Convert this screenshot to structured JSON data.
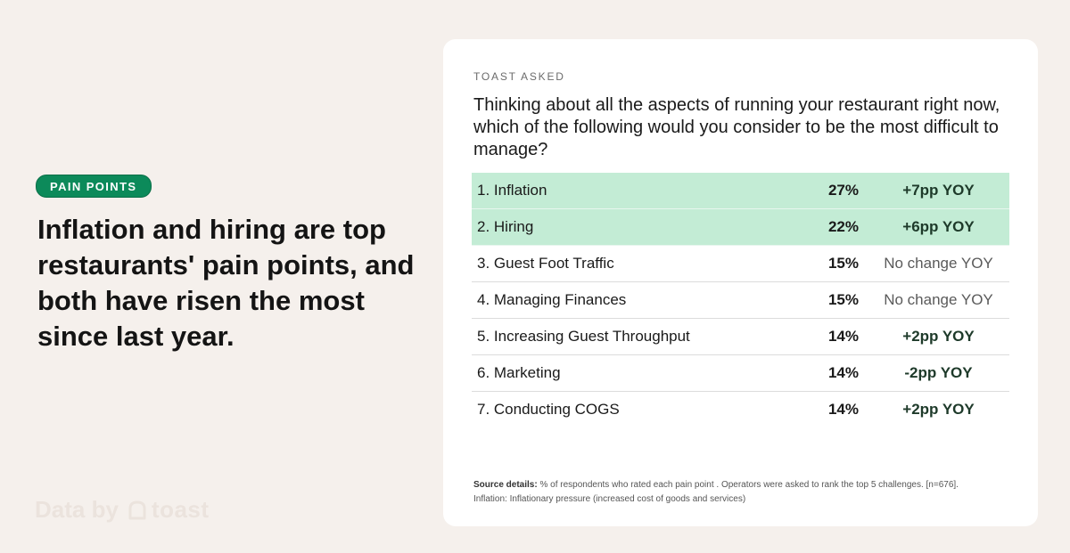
{
  "left": {
    "badge": "PAIN POINTS",
    "headline": "Inflation and hiring are top restaurants' pain points, and both have risen the most since last year.",
    "brand": {
      "prefix": "Data by",
      "name": "toast",
      "icon": "toast-logo-icon"
    }
  },
  "card": {
    "eyebrow": "TOAST ASKED",
    "question": "Thinking about all the aspects of running your restaurant right now, which of the following would you consider to be the most difficult to manage?",
    "source_label": "Source details:",
    "source_text": "% of respondents who rated each pain point . Operators were asked to rank the top 5 challenges. [n=676].",
    "source_note": "Inflation: Inflationary pressure (increased cost of goods and services)"
  },
  "colors": {
    "highlight": "#c3ecd5",
    "badge": "#0c8a5a",
    "background": "#f5f0ec"
  },
  "chart_data": {
    "type": "table",
    "rows": [
      {
        "label": "1. Inflation",
        "percent": "27%",
        "change": "+7pp YOY",
        "highlight": true
      },
      {
        "label": "2. Hiring",
        "percent": "22%",
        "change": "+6pp YOY",
        "highlight": true
      },
      {
        "label": "3. Guest Foot Traffic",
        "percent": "15%",
        "change": "No change YOY",
        "highlight": false
      },
      {
        "label": "4. Managing Finances",
        "percent": "15%",
        "change": "No change YOY",
        "highlight": false
      },
      {
        "label": "5. Increasing Guest Throughput",
        "percent": "14%",
        "change": "+2pp YOY",
        "highlight": false
      },
      {
        "label": "6. Marketing",
        "percent": "14%",
        "change": "-2pp YOY",
        "highlight": false
      },
      {
        "label": "7. Conducting COGS",
        "percent": "14%",
        "change": "+2pp YOY",
        "highlight": false
      }
    ]
  }
}
